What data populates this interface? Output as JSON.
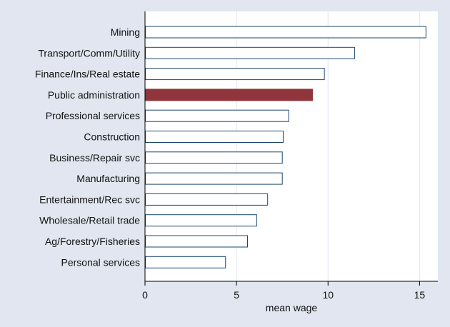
{
  "chart_data": {
    "type": "bar",
    "orientation": "horizontal",
    "categories": [
      "Mining",
      "Transport/Comm/Utility",
      "Finance/Ins/Real estate",
      "Public administration",
      "Professional services",
      "Construction",
      "Business/Repair svc",
      "Manufacturing",
      "Entertainment/Rec svc",
      "Wholesale/Retail trade",
      "Ag/Forestry/Fisheries",
      "Personal services"
    ],
    "values": [
      15.35,
      11.45,
      9.8,
      9.15,
      7.85,
      7.55,
      7.5,
      7.5,
      6.7,
      6.1,
      5.6,
      4.4
    ],
    "highlight_index": 3,
    "xlabel": "mean wage",
    "ylabel": "",
    "xlim": [
      0,
      16
    ],
    "xticks": [
      0,
      5,
      10,
      15
    ],
    "grid": "vertical",
    "legend": "none",
    "colors": {
      "background": "#e1e6f0",
      "plot_background": "#ffffff",
      "bar_fill": "#ffffff",
      "bar_outline": "#1a476f",
      "highlight_fill": "#90353b",
      "grid": "#e1e6f0"
    }
  }
}
